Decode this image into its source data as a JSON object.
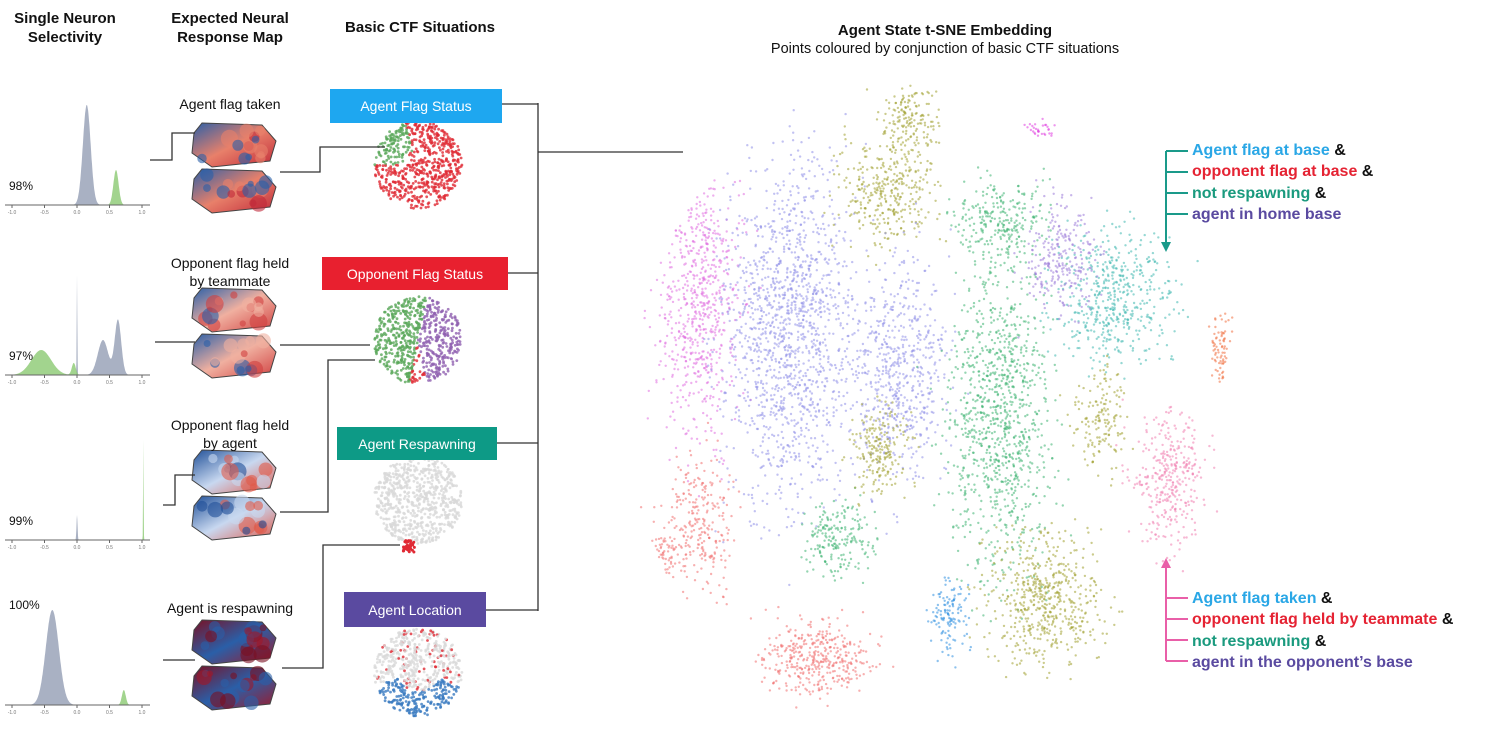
{
  "columns": {
    "selectivity": [
      "Single Neuron",
      "Selectivity"
    ],
    "response_map": [
      "Expected Neural",
      "Response Map"
    ],
    "situations": "Basic CTF Situations"
  },
  "embedding": {
    "title": "Agent State t-SNE Embedding",
    "subtitle": "Points coloured by conjunction of basic CTF situations"
  },
  "rows": [
    {
      "percent": "98%",
      "map_label": [
        "Agent flag taken",
        ""
      ],
      "situation": "Agent Flag Status",
      "situation_color": "#1ea7f0"
    },
    {
      "percent": "97%",
      "map_label": [
        "Opponent flag held",
        "by teammate"
      ],
      "situation": "Opponent Flag Status",
      "situation_color": "#e8202f"
    },
    {
      "percent": "99%",
      "map_label": [
        "Opponent flag held",
        "by agent"
      ],
      "situation": "Agent Respawning",
      "situation_color": "#0d9a86"
    },
    {
      "percent": "100%",
      "map_label": [
        "Agent is respawning",
        ""
      ],
      "situation": "Agent Location",
      "situation_color": "#5a4aa0"
    }
  ],
  "histogram_ticks": [
    "-1.0",
    "-0.5",
    "0.0",
    "0.5",
    "1.0"
  ],
  "annotations": {
    "top": {
      "arrow_color": "#1a9a8a",
      "lines": [
        {
          "text": "Agent flag at base",
          "amp": "&",
          "color": "#2aa7e6"
        },
        {
          "text": "opponent flag at base",
          "amp": "&",
          "color": "#e52333"
        },
        {
          "text": "not respawning",
          "amp": "&",
          "color": "#1a9a7e"
        },
        {
          "text": "agent in home base",
          "amp": "",
          "color": "#5a4aa0"
        }
      ]
    },
    "bottom": {
      "arrow_color": "#e95fa8",
      "lines": [
        {
          "text": "Agent flag taken",
          "amp": "&",
          "color": "#2aa7e6"
        },
        {
          "text": "opponent flag held by teammate",
          "amp": "&",
          "color": "#e52333"
        },
        {
          "text": "not respawning",
          "amp": "&",
          "color": "#1a9a7e"
        },
        {
          "text": "agent in the opponent’s base",
          "amp": "",
          "color": "#5a4aa0"
        }
      ]
    }
  }
}
